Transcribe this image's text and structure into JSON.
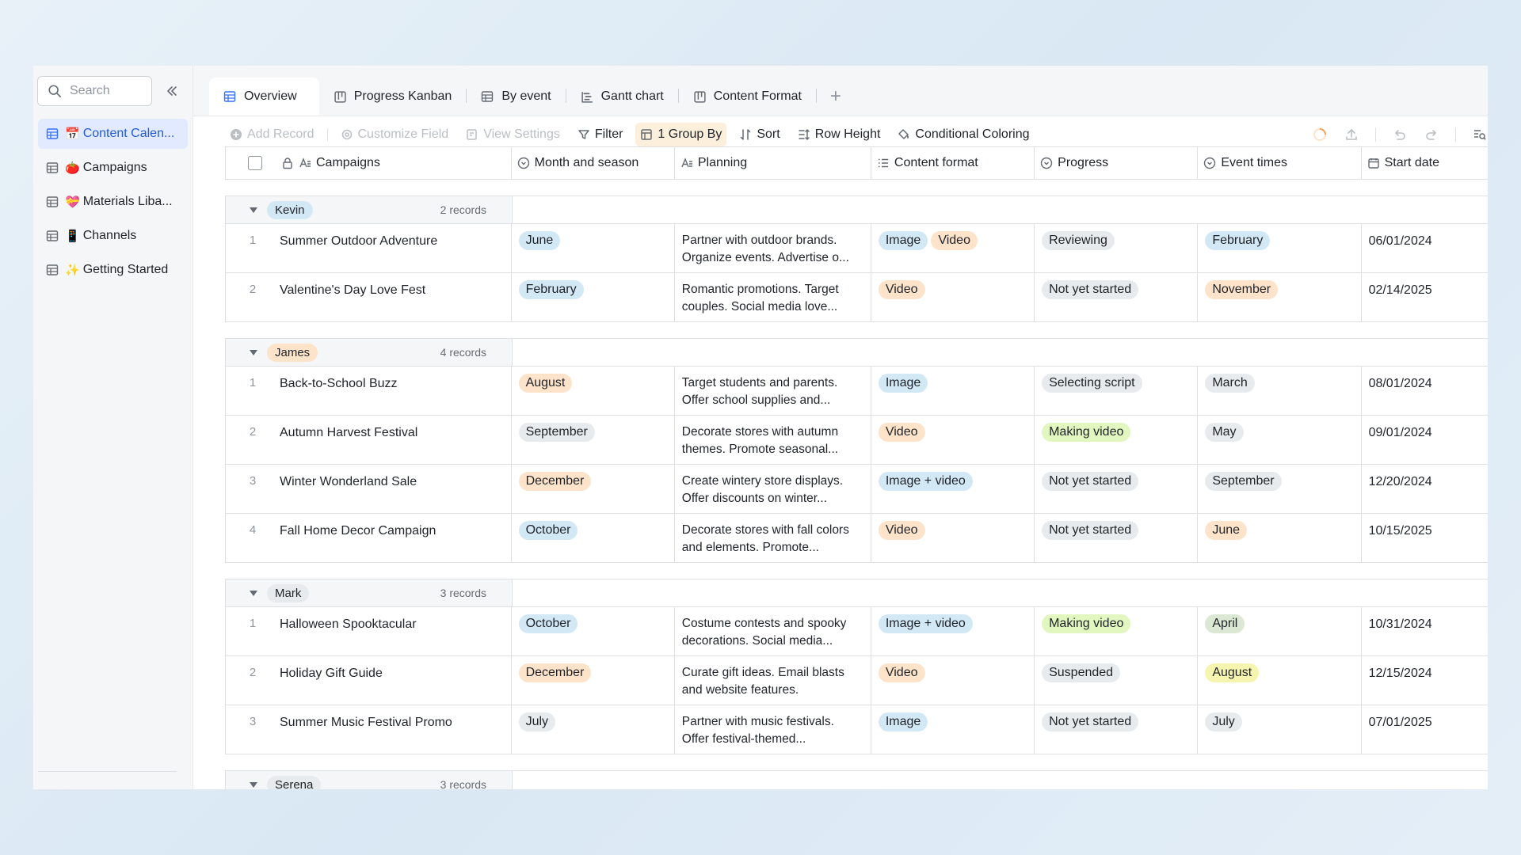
{
  "sidebar": {
    "search_placeholder": "Search",
    "items": [
      {
        "emoji": "📅",
        "label": "Content Calen...",
        "active": true
      },
      {
        "emoji": "🍅",
        "label": "Campaigns"
      },
      {
        "emoji": "💝",
        "label": "Materials Liba..."
      },
      {
        "emoji": "📱",
        "label": "Channels"
      },
      {
        "emoji": "✨",
        "label": "Getting Started"
      }
    ]
  },
  "tabs": [
    {
      "label": "Overview",
      "icon": "grid-table-icon"
    },
    {
      "label": "Progress Kanban",
      "icon": "kanban-icon"
    },
    {
      "label": "By event",
      "icon": "grid-table-icon"
    },
    {
      "label": "Gantt chart",
      "icon": "gantt-icon"
    },
    {
      "label": "Content Format",
      "icon": "kanban-icon"
    }
  ],
  "toolbar": {
    "add_record": "Add Record",
    "customize_field": "Customize Field",
    "view_settings": "View Settings",
    "filter": "Filter",
    "group_by": "1 Group By",
    "sort": "Sort",
    "row_height": "Row Height",
    "conditional_coloring": "Conditional Coloring"
  },
  "columns": [
    "Campaigns",
    "Month and season",
    "Planning",
    "Content format",
    "Progress",
    "Event times",
    "Start date"
  ],
  "groups": [
    {
      "owner": "Kevin",
      "owner_color": "#d3e8f5",
      "count": "2 records",
      "rows": [
        {
          "n": "1",
          "campaign": "Summer Outdoor Adventure",
          "month": "June",
          "month_color": "#d3e8f5",
          "planning": "Partner with outdoor brands. Organize events. Advertise o...",
          "formats": [
            {
              "t": "Image",
              "c": "#d3e8f5"
            },
            {
              "t": "Video",
              "c": "#fde3c9"
            }
          ],
          "progress": "Reviewing",
          "progress_color": "#e8ebed",
          "event": "February",
          "event_color": "#d3e8f5",
          "start": "06/01/2024"
        },
        {
          "n": "2",
          "campaign": "Valentine's Day Love Fest",
          "month": "February",
          "month_color": "#d3e8f5",
          "planning": "Romantic promotions. Target couples. Social media love...",
          "formats": [
            {
              "t": "Video",
              "c": "#fde3c9"
            }
          ],
          "progress": "Not yet started",
          "progress_color": "#e8ebed",
          "event": "November",
          "event_color": "#fde3c9",
          "start": "02/14/2025"
        }
      ]
    },
    {
      "owner": "James",
      "owner_color": "#fde3c9",
      "count": "4 records",
      "rows": [
        {
          "n": "1",
          "campaign": "Back-to-School Buzz",
          "month": "August",
          "month_color": "#fde3c9",
          "planning": "Target students and parents. Offer school supplies and...",
          "formats": [
            {
              "t": "Image",
              "c": "#d3e8f5"
            }
          ],
          "progress": "Selecting script",
          "progress_color": "#e8ebed",
          "event": "March",
          "event_color": "#e8ebed",
          "start": "08/01/2024"
        },
        {
          "n": "2",
          "campaign": "Autumn Harvest Festival",
          "month": "September",
          "month_color": "#e8ebed",
          "planning": "Decorate stores with autumn themes. Promote seasonal...",
          "formats": [
            {
              "t": "Video",
              "c": "#fde3c9"
            }
          ],
          "progress": "Making video",
          "progress_color": "#e2f6c0",
          "event": "May",
          "event_color": "#e8ebed",
          "start": "09/01/2024"
        },
        {
          "n": "3",
          "campaign": "Winter Wonderland Sale",
          "month": "December",
          "month_color": "#fde3c9",
          "planning": "Create wintery store displays. Offer discounts on winter...",
          "formats": [
            {
              "t": "Image + video",
              "c": "#d3e8f5"
            }
          ],
          "progress": "Not yet started",
          "progress_color": "#e8ebed",
          "event": "September",
          "event_color": "#e8ebed",
          "start": "12/20/2024"
        },
        {
          "n": "4",
          "campaign": "Fall Home Decor Campaign",
          "month": "October",
          "month_color": "#d3e8f5",
          "planning": "Decorate stores with fall colors and elements. Promote...",
          "formats": [
            {
              "t": "Video",
              "c": "#fde3c9"
            }
          ],
          "progress": "Not yet started",
          "progress_color": "#e8ebed",
          "event": "June",
          "event_color": "#fde3c9",
          "start": "10/15/2025"
        }
      ]
    },
    {
      "owner": "Mark",
      "owner_color": "#e8ebed",
      "count": "3 records",
      "rows": [
        {
          "n": "1",
          "campaign": "Halloween Spooktacular",
          "month": "October",
          "month_color": "#d3e8f5",
          "planning": "Costume contests and spooky decorations. Social media...",
          "formats": [
            {
              "t": "Image + video",
              "c": "#d3e8f5"
            }
          ],
          "progress": "Making video",
          "progress_color": "#e2f6c0",
          "event": "April",
          "event_color": "#dbe8d4",
          "start": "10/31/2024"
        },
        {
          "n": "2",
          "campaign": "Holiday Gift Guide",
          "month": "December",
          "month_color": "#fde3c9",
          "planning": "Curate gift ideas. Email blasts and website features.",
          "formats": [
            {
              "t": "Video",
              "c": "#fde3c9"
            }
          ],
          "progress": "Suspended",
          "progress_color": "#e8ebed",
          "event": "August",
          "event_color": "#f6f5b0",
          "start": "12/15/2024"
        },
        {
          "n": "3",
          "campaign": "Summer Music Festival Promo",
          "month": "July",
          "month_color": "#e8ebed",
          "planning": "Partner with music festivals. Offer festival-themed...",
          "formats": [
            {
              "t": "Image",
              "c": "#d3e8f5"
            }
          ],
          "progress": "Not yet started",
          "progress_color": "#e8ebed",
          "event": "July",
          "event_color": "#e8ebed",
          "start": "07/01/2025"
        }
      ]
    },
    {
      "owner": "Serena",
      "owner_color": "#e8ebed",
      "count": "3 records",
      "rows": []
    }
  ]
}
